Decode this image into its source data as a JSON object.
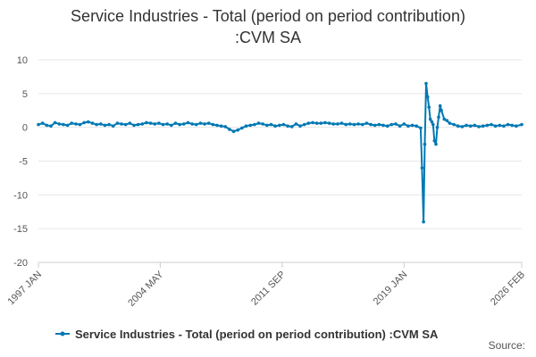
{
  "chart_data": {
    "type": "line",
    "title_line1": "Service Industries - Total (period on period contribution)",
    "title_line2": ":CVM SA",
    "ylim": [
      -20,
      10
    ],
    "y_ticks": [
      "10",
      "5",
      "0",
      "-5",
      "-10",
      "-15",
      "-20"
    ],
    "y_tick_values": [
      10,
      5,
      0,
      -5,
      -10,
      -15,
      -20
    ],
    "x_ticks": [
      {
        "label": "1997 JAN",
        "value": 1997.0
      },
      {
        "label": "2004 MAY",
        "value": 2004.33
      },
      {
        "label": "2011 SEP",
        "value": 2011.67
      },
      {
        "label": "2019 JAN",
        "value": 2019.0
      },
      {
        "label": "2026 FEB",
        "value": 2026.08
      }
    ],
    "xlim": [
      1997.0,
      2026.08
    ],
    "series": [
      {
        "name": "Service Industries - Total (period on period contribution) :CVM SA",
        "color": "#0078b4",
        "points": [
          [
            1997.0,
            0.4
          ],
          [
            1997.25,
            0.6
          ],
          [
            1997.5,
            0.3
          ],
          [
            1997.75,
            0.2
          ],
          [
            1998.0,
            0.7
          ],
          [
            1998.25,
            0.5
          ],
          [
            1998.5,
            0.4
          ],
          [
            1998.75,
            0.3
          ],
          [
            1999.0,
            0.6
          ],
          [
            1999.25,
            0.5
          ],
          [
            1999.5,
            0.4
          ],
          [
            1999.75,
            0.7
          ],
          [
            2000.0,
            0.8
          ],
          [
            2000.25,
            0.6
          ],
          [
            2000.5,
            0.4
          ],
          [
            2000.75,
            0.5
          ],
          [
            2001.0,
            0.3
          ],
          [
            2001.25,
            0.4
          ],
          [
            2001.5,
            0.2
          ],
          [
            2001.75,
            0.6
          ],
          [
            2002.0,
            0.5
          ],
          [
            2002.25,
            0.4
          ],
          [
            2002.5,
            0.6
          ],
          [
            2002.75,
            0.3
          ],
          [
            2003.0,
            0.4
          ],
          [
            2003.25,
            0.5
          ],
          [
            2003.5,
            0.7
          ],
          [
            2003.75,
            0.6
          ],
          [
            2004.0,
            0.5
          ],
          [
            2004.25,
            0.6
          ],
          [
            2004.5,
            0.4
          ],
          [
            2004.75,
            0.5
          ],
          [
            2005.0,
            0.3
          ],
          [
            2005.25,
            0.6
          ],
          [
            2005.5,
            0.4
          ],
          [
            2005.75,
            0.5
          ],
          [
            2006.0,
            0.7
          ],
          [
            2006.25,
            0.5
          ],
          [
            2006.5,
            0.4
          ],
          [
            2006.75,
            0.6
          ],
          [
            2007.0,
            0.5
          ],
          [
            2007.25,
            0.6
          ],
          [
            2007.5,
            0.4
          ],
          [
            2007.75,
            0.3
          ],
          [
            2008.0,
            0.2
          ],
          [
            2008.25,
            0.1
          ],
          [
            2008.5,
            -0.3
          ],
          [
            2008.75,
            -0.6
          ],
          [
            2009.0,
            -0.4
          ],
          [
            2009.25,
            -0.1
          ],
          [
            2009.5,
            0.2
          ],
          [
            2009.75,
            0.3
          ],
          [
            2010.0,
            0.4
          ],
          [
            2010.25,
            0.6
          ],
          [
            2010.5,
            0.5
          ],
          [
            2010.75,
            0.3
          ],
          [
            2011.0,
            0.4
          ],
          [
            2011.25,
            0.2
          ],
          [
            2011.5,
            0.3
          ],
          [
            2011.75,
            0.4
          ],
          [
            2012.0,
            0.2
          ],
          [
            2012.25,
            0.1
          ],
          [
            2012.5,
            0.5
          ],
          [
            2012.75,
            0.2
          ],
          [
            2013.0,
            0.4
          ],
          [
            2013.25,
            0.6
          ],
          [
            2013.5,
            0.7
          ],
          [
            2013.75,
            0.6
          ],
          [
            2014.0,
            0.6
          ],
          [
            2014.25,
            0.7
          ],
          [
            2014.5,
            0.6
          ],
          [
            2014.75,
            0.5
          ],
          [
            2015.0,
            0.5
          ],
          [
            2015.25,
            0.6
          ],
          [
            2015.5,
            0.4
          ],
          [
            2015.75,
            0.5
          ],
          [
            2016.0,
            0.4
          ],
          [
            2016.25,
            0.5
          ],
          [
            2016.5,
            0.4
          ],
          [
            2016.75,
            0.6
          ],
          [
            2017.0,
            0.4
          ],
          [
            2017.25,
            0.3
          ],
          [
            2017.5,
            0.4
          ],
          [
            2017.75,
            0.3
          ],
          [
            2018.0,
            0.2
          ],
          [
            2018.25,
            0.4
          ],
          [
            2018.5,
            0.5
          ],
          [
            2018.75,
            0.2
          ],
          [
            2019.0,
            0.5
          ],
          [
            2019.25,
            0.2
          ],
          [
            2019.5,
            0.3
          ],
          [
            2019.75,
            0.2
          ],
          [
            2020.0,
            -0.1
          ],
          [
            2020.08,
            -6.0
          ],
          [
            2020.17,
            -14.0
          ],
          [
            2020.25,
            -2.5
          ],
          [
            2020.33,
            6.5
          ],
          [
            2020.42,
            4.5
          ],
          [
            2020.5,
            3.0
          ],
          [
            2020.58,
            1.2
          ],
          [
            2020.67,
            0.8
          ],
          [
            2020.75,
            0.4
          ],
          [
            2020.83,
            -2.0
          ],
          [
            2020.92,
            -2.5
          ],
          [
            2021.0,
            0.0
          ],
          [
            2021.08,
            1.5
          ],
          [
            2021.17,
            3.2
          ],
          [
            2021.25,
            2.5
          ],
          [
            2021.42,
            1.2
          ],
          [
            2021.58,
            1.0
          ],
          [
            2021.75,
            0.6
          ],
          [
            2022.0,
            0.4
          ],
          [
            2022.25,
            0.2
          ],
          [
            2022.5,
            0.1
          ],
          [
            2022.75,
            0.3
          ],
          [
            2023.0,
            0.2
          ],
          [
            2023.25,
            0.3
          ],
          [
            2023.5,
            0.1
          ],
          [
            2023.75,
            0.2
          ],
          [
            2024.0,
            0.3
          ],
          [
            2024.25,
            0.4
          ],
          [
            2024.5,
            0.2
          ],
          [
            2024.75,
            0.3
          ],
          [
            2025.0,
            0.2
          ],
          [
            2025.25,
            0.4
          ],
          [
            2025.5,
            0.3
          ],
          [
            2025.75,
            0.2
          ],
          [
            2026.08,
            0.4
          ]
        ]
      }
    ],
    "source_label": "Source:"
  }
}
